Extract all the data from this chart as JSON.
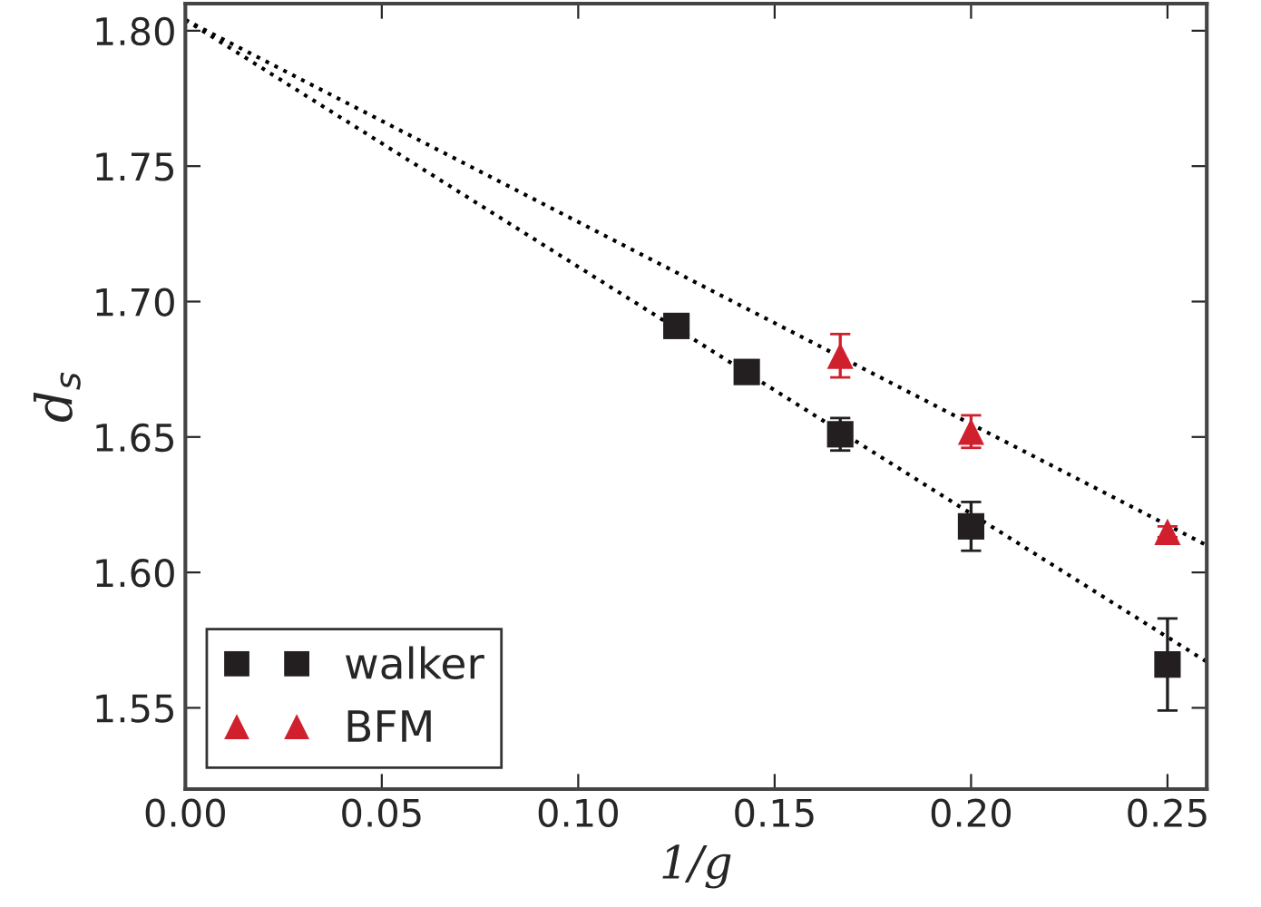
{
  "chart_data": {
    "type": "scatter",
    "xlabel": "1/g",
    "ylabel": "d$_{s}$",
    "xlim": [
      0,
      0.26
    ],
    "ylim": [
      1.52,
      1.81
    ],
    "xticks": [
      {
        "value": 0,
        "label": "0.00"
      },
      {
        "value": 0.05,
        "label": "0.05"
      },
      {
        "value": 0.1,
        "label": "0.10"
      },
      {
        "value": 0.15,
        "label": "0.15"
      },
      {
        "value": 0.2,
        "label": "0.20"
      },
      {
        "value": 0.25,
        "label": "0.25"
      }
    ],
    "yticks": [
      {
        "value": 1.55,
        "label": "1.55"
      },
      {
        "value": 1.6,
        "label": "1.60"
      },
      {
        "value": 1.65,
        "label": "1.65"
      },
      {
        "value": 1.7,
        "label": "1.70"
      },
      {
        "value": 1.75,
        "label": "1.75"
      },
      {
        "value": 1.8,
        "label": "1.80"
      }
    ],
    "grid": false,
    "legend": "bottom left",
    "series": [
      {
        "name": "walker",
        "color": "#231f20",
        "marker": "square",
        "x": [
          0.125,
          0.1429,
          0.1667,
          0.2,
          0.25
        ],
        "values": [
          1.691,
          1.674,
          1.651,
          1.617,
          1.566
        ],
        "errors": [
          null,
          null,
          0.006,
          0.009,
          0.017
        ]
      },
      {
        "name": "BFM",
        "color": "#d0202e",
        "marker": "triangle",
        "x": [
          0.1667,
          0.2,
          0.25
        ],
        "values": [
          1.68,
          1.652,
          1.615
        ],
        "errors": [
          0.008,
          0.006,
          0.002
        ]
      },
      {
        "type": "line",
        "color": "#000000",
        "line_style": "dotted",
        "marker": "none",
        "x": [
          0,
          0.26
        ],
        "values": [
          1.804,
          1.567
        ]
      },
      {
        "type": "line",
        "color": "#000000",
        "line_style": "dotted",
        "marker": "none",
        "x": [
          0,
          0.26
        ],
        "values": [
          1.804,
          1.61
        ]
      }
    ]
  }
}
